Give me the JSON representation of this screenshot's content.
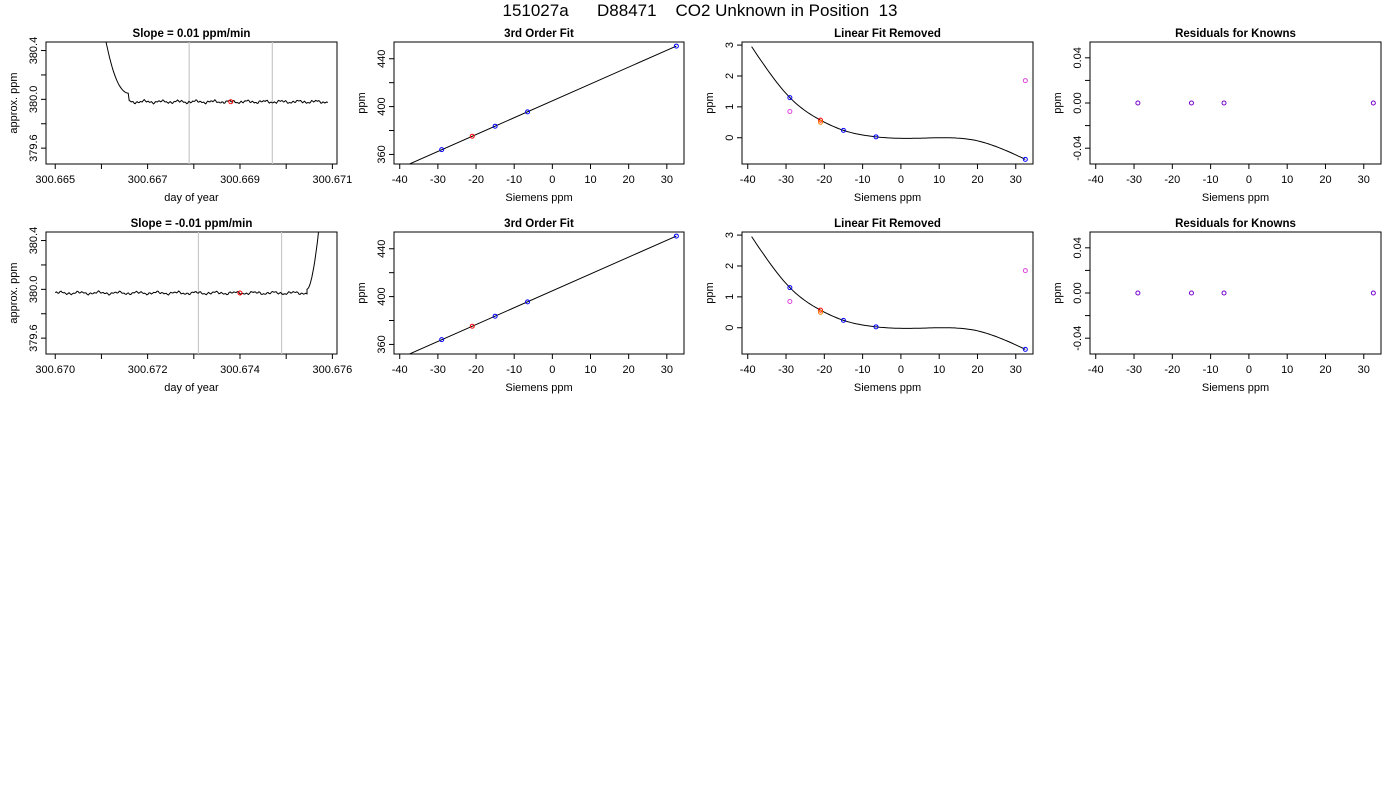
{
  "title": "151027a      D88471    CO2 Unknown in Position  13",
  "colors": {
    "known": "#0000ff",
    "unknown": "#ff0000",
    "check": "#ff8000",
    "residual": "#7700cc",
    "extra": "#dd44dd",
    "trace": "#000000",
    "marker_line": "#c8c8c8"
  },
  "chart_data": [
    {
      "type": "line",
      "title": "Slope =  0.01  ppm/min",
      "xlabel": "day of year",
      "ylabel": "approx. ppm",
      "xlim": [
        300.6648,
        300.6711
      ],
      "ylim": [
        379.47,
        380.47
      ],
      "xticks": [
        300.665,
        300.666,
        300.667,
        300.668,
        300.669,
        300.67,
        300.671
      ],
      "xtick_labels": [
        "300.665",
        "",
        "300.667",
        "",
        "300.669",
        "",
        "300.671"
      ],
      "yticks": [
        379.6,
        379.8,
        380.0,
        380.2,
        380.4
      ],
      "ytick_labels": [
        "379.6",
        "",
        "380.0",
        "",
        "380.4"
      ],
      "vlines": [
        300.6679,
        300.6697
      ],
      "trace": {
        "x_start": 300.6661,
        "x_end": 300.6709,
        "decay_start": 380.47,
        "decay_end": 380.05,
        "decay_until": 300.6666,
        "level": 379.98
      },
      "points": [
        {
          "x": 300.6688,
          "y": 379.98,
          "color": "unknown"
        }
      ]
    },
    {
      "type": "scatter",
      "title": "3rd Order Fit",
      "xlabel": "Siemens ppm",
      "ylabel": "ppm",
      "xlim": [
        -41.5,
        34.5
      ],
      "ylim": [
        352,
        454
      ],
      "xticks": [
        -40,
        -30,
        -20,
        -10,
        0,
        10,
        20,
        30
      ],
      "xtick_labels": [
        "-40",
        "-30",
        "-20",
        "-10",
        "0",
        "10",
        "20",
        "30"
      ],
      "yticks": [
        360,
        380,
        400,
        420,
        440
      ],
      "ytick_labels": [
        "360",
        "",
        "400",
        "",
        "440"
      ],
      "fit_line": {
        "x_from": -39,
        "x_to": 32.5,
        "y_at_zero": 404.8,
        "slope": 1.41
      },
      "points": [
        {
          "x": -29,
          "y": 364.0,
          "color": "known"
        },
        {
          "x": -21,
          "y": 375.2,
          "color": "unknown"
        },
        {
          "x": -15,
          "y": 383.6,
          "color": "known"
        },
        {
          "x": -6.5,
          "y": 395.6,
          "color": "known"
        },
        {
          "x": 32.5,
          "y": 450.6,
          "color": "known"
        }
      ]
    },
    {
      "type": "scatter",
      "title": "Linear Fit Removed",
      "xlabel": "Siemens ppm",
      "ylabel": "ppm",
      "xlim": [
        -41.5,
        34.5
      ],
      "ylim": [
        -0.85,
        3.1
      ],
      "xticks": [
        -40,
        -30,
        -20,
        -10,
        0,
        10,
        20,
        30
      ],
      "xtick_labels": [
        "-40",
        "-30",
        "-20",
        "-10",
        "0",
        "10",
        "20",
        "30"
      ],
      "yticks": [
        0,
        1,
        2,
        3
      ],
      "ytick_labels": [
        "0",
        "1",
        "2",
        "3"
      ],
      "curve_through": [
        [
          -39,
          2.95
        ],
        [
          -29,
          1.3
        ],
        [
          -21,
          0.57
        ],
        [
          -15,
          0.24
        ],
        [
          -6.5,
          0.03
        ],
        [
          0,
          -0.02
        ],
        [
          10,
          0.0
        ],
        [
          20,
          -0.1
        ],
        [
          32.5,
          -0.7
        ]
      ],
      "points": [
        {
          "x": -29,
          "y": 1.3,
          "color": "known"
        },
        {
          "x": -29,
          "y": 0.85,
          "color": "extra"
        },
        {
          "x": -21,
          "y": 0.57,
          "color": "unknown"
        },
        {
          "x": -21,
          "y": 0.5,
          "color": "check"
        },
        {
          "x": -15,
          "y": 0.24,
          "color": "known"
        },
        {
          "x": -6.5,
          "y": 0.03,
          "color": "known"
        },
        {
          "x": 32.5,
          "y": 1.85,
          "color": "extra"
        },
        {
          "x": 32.5,
          "y": -0.7,
          "color": "known"
        }
      ]
    },
    {
      "type": "scatter",
      "title": "Residuals for Knowns",
      "xlabel": "Siemens ppm",
      "ylabel": "ppm",
      "xlim": [
        -41.5,
        34.5
      ],
      "ylim": [
        -0.054,
        0.054
      ],
      "xticks": [
        -40,
        -30,
        -20,
        -10,
        0,
        10,
        20,
        30
      ],
      "xtick_labels": [
        "-40",
        "-30",
        "-20",
        "-10",
        "0",
        "10",
        "20",
        "30"
      ],
      "yticks": [
        -0.04,
        -0.02,
        0.0,
        0.02,
        0.04
      ],
      "ytick_labels": [
        "-0.04",
        "",
        "0.00",
        "",
        "0.04"
      ],
      "points": [
        {
          "x": -29,
          "y": 0.0,
          "color": "residual"
        },
        {
          "x": -15,
          "y": 0.0,
          "color": "residual"
        },
        {
          "x": -6.5,
          "y": 0.0,
          "color": "residual"
        },
        {
          "x": 32.5,
          "y": 0.0,
          "color": "residual"
        }
      ]
    },
    {
      "type": "line",
      "title": "Slope =  -0.01  ppm/min",
      "xlabel": "day of year",
      "ylabel": "approx. ppm",
      "xlim": [
        300.6698,
        300.6761
      ],
      "ylim": [
        379.47,
        380.47
      ],
      "xticks": [
        300.67,
        300.671,
        300.672,
        300.673,
        300.674,
        300.675,
        300.676
      ],
      "xtick_labels": [
        "300.670",
        "",
        "300.672",
        "",
        "300.674",
        "",
        "300.676"
      ],
      "yticks": [
        379.6,
        379.8,
        380.0,
        380.2,
        380.4
      ],
      "ytick_labels": [
        "379.6",
        "",
        "380.0",
        "",
        "380.4"
      ],
      "vlines": [
        300.6731,
        300.6749
      ],
      "trace": {
        "x_start": 300.67,
        "x_end": 300.67545,
        "rise_from": 380.0,
        "rise_to": 380.47,
        "rise_until": 300.6757,
        "level": 379.97
      },
      "points": [
        {
          "x": 300.674,
          "y": 379.97,
          "color": "unknown"
        }
      ]
    },
    {
      "type": "scatter",
      "title": "3rd Order Fit",
      "xlabel": "Siemens ppm",
      "ylabel": "ppm",
      "xlim": [
        -41.5,
        34.5
      ],
      "ylim": [
        352,
        454
      ],
      "xticks": [
        -40,
        -30,
        -20,
        -10,
        0,
        10,
        20,
        30
      ],
      "xtick_labels": [
        "-40",
        "-30",
        "-20",
        "-10",
        "0",
        "10",
        "20",
        "30"
      ],
      "yticks": [
        360,
        380,
        400,
        420,
        440
      ],
      "ytick_labels": [
        "360",
        "",
        "400",
        "",
        "440"
      ],
      "fit_line": {
        "x_from": -39,
        "x_to": 32.5,
        "y_at_zero": 404.8,
        "slope": 1.41
      },
      "points": [
        {
          "x": -29,
          "y": 364.0,
          "color": "known"
        },
        {
          "x": -21,
          "y": 375.2,
          "color": "unknown"
        },
        {
          "x": -15,
          "y": 383.6,
          "color": "known"
        },
        {
          "x": -6.5,
          "y": 395.6,
          "color": "known"
        },
        {
          "x": 32.5,
          "y": 450.6,
          "color": "known"
        }
      ]
    },
    {
      "type": "scatter",
      "title": "Linear Fit Removed",
      "xlabel": "Siemens ppm",
      "ylabel": "ppm",
      "xlim": [
        -41.5,
        34.5
      ],
      "ylim": [
        -0.85,
        3.1
      ],
      "xticks": [
        -40,
        -30,
        -20,
        -10,
        0,
        10,
        20,
        30
      ],
      "xtick_labels": [
        "-40",
        "-30",
        "-20",
        "-10",
        "0",
        "10",
        "20",
        "30"
      ],
      "yticks": [
        0,
        1,
        2,
        3
      ],
      "ytick_labels": [
        "0",
        "1",
        "2",
        "3"
      ],
      "curve_through": [
        [
          -39,
          2.95
        ],
        [
          -29,
          1.3
        ],
        [
          -21,
          0.57
        ],
        [
          -15,
          0.24
        ],
        [
          -6.5,
          0.03
        ],
        [
          0,
          -0.02
        ],
        [
          10,
          0.0
        ],
        [
          20,
          -0.1
        ],
        [
          32.5,
          -0.7
        ]
      ],
      "points": [
        {
          "x": -29,
          "y": 1.3,
          "color": "known"
        },
        {
          "x": -29,
          "y": 0.85,
          "color": "extra"
        },
        {
          "x": -21,
          "y": 0.57,
          "color": "unknown"
        },
        {
          "x": -21,
          "y": 0.5,
          "color": "check"
        },
        {
          "x": -15,
          "y": 0.24,
          "color": "known"
        },
        {
          "x": -6.5,
          "y": 0.03,
          "color": "known"
        },
        {
          "x": 32.5,
          "y": 1.85,
          "color": "extra"
        },
        {
          "x": 32.5,
          "y": -0.7,
          "color": "known"
        }
      ]
    },
    {
      "type": "scatter",
      "title": "Residuals for Knowns",
      "xlabel": "Siemens ppm",
      "ylabel": "ppm",
      "xlim": [
        -41.5,
        34.5
      ],
      "ylim": [
        -0.054,
        0.054
      ],
      "xticks": [
        -40,
        -30,
        -20,
        -10,
        0,
        10,
        20,
        30
      ],
      "xtick_labels": [
        "-40",
        "-30",
        "-20",
        "-10",
        "0",
        "10",
        "20",
        "30"
      ],
      "yticks": [
        -0.04,
        -0.02,
        0.0,
        0.02,
        0.04
      ],
      "ytick_labels": [
        "-0.04",
        "",
        "0.00",
        "",
        "0.04"
      ],
      "points": [
        {
          "x": -29,
          "y": 0.0,
          "color": "residual"
        },
        {
          "x": -15,
          "y": 0.0,
          "color": "residual"
        },
        {
          "x": -6.5,
          "y": 0.0,
          "color": "residual"
        },
        {
          "x": 32.5,
          "y": 0.0,
          "color": "residual"
        }
      ]
    }
  ]
}
